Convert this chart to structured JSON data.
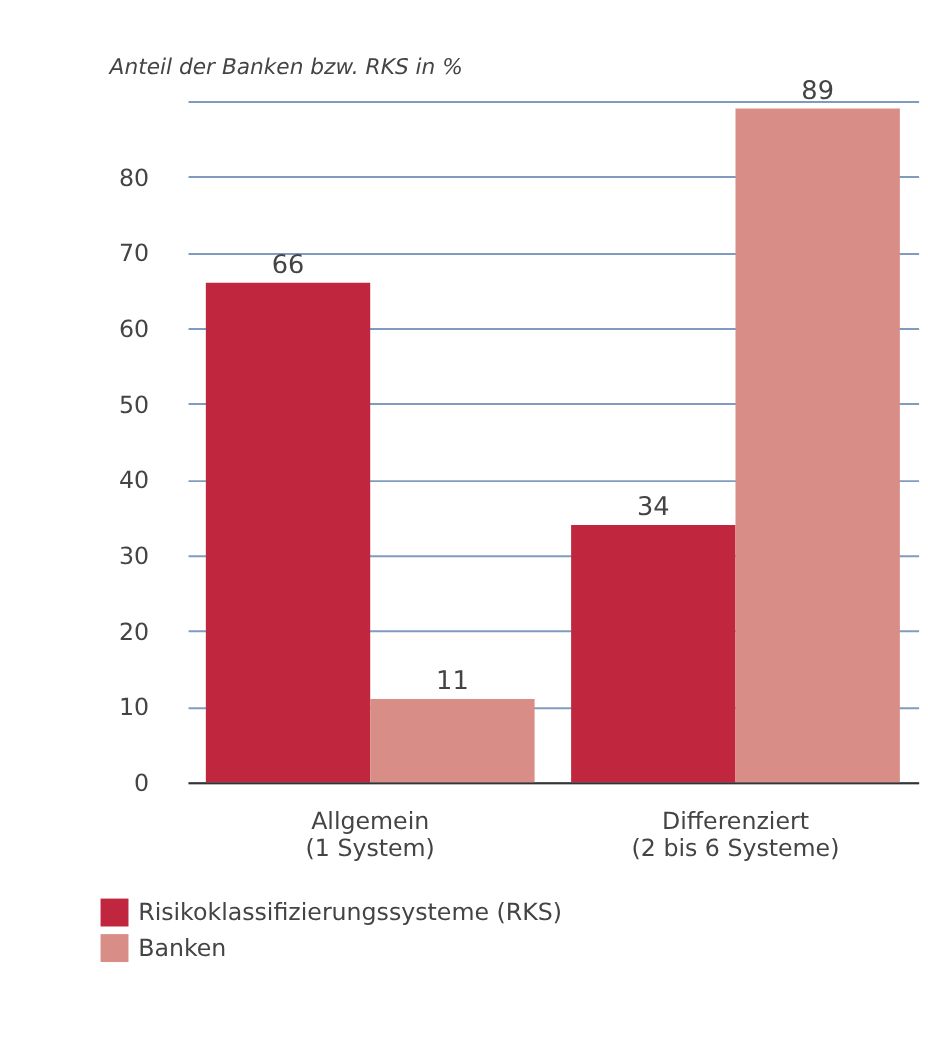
{
  "chart_data": {
    "type": "bar",
    "ylabel": "Anteil der Banken bzw. RKS in %",
    "categories": [
      "Allgemein\n(1 System)",
      "Differenziert\n(2 bis 6 Systeme)"
    ],
    "series": [
      {
        "name": "Risikoklassifizierungssysteme (RKS)",
        "color": "#c0273f",
        "values": [
          66,
          34
        ]
      },
      {
        "name": "Banken",
        "color": "#d98d87",
        "values": [
          11,
          89
        ]
      }
    ],
    "ylim": [
      0,
      90
    ],
    "yticks": [
      0,
      10,
      20,
      30,
      40,
      50,
      60,
      70,
      80,
      {
        "value": 90,
        "label": null
      }
    ],
    "grid": "y",
    "legend": "bottom",
    "data_labels": true
  }
}
